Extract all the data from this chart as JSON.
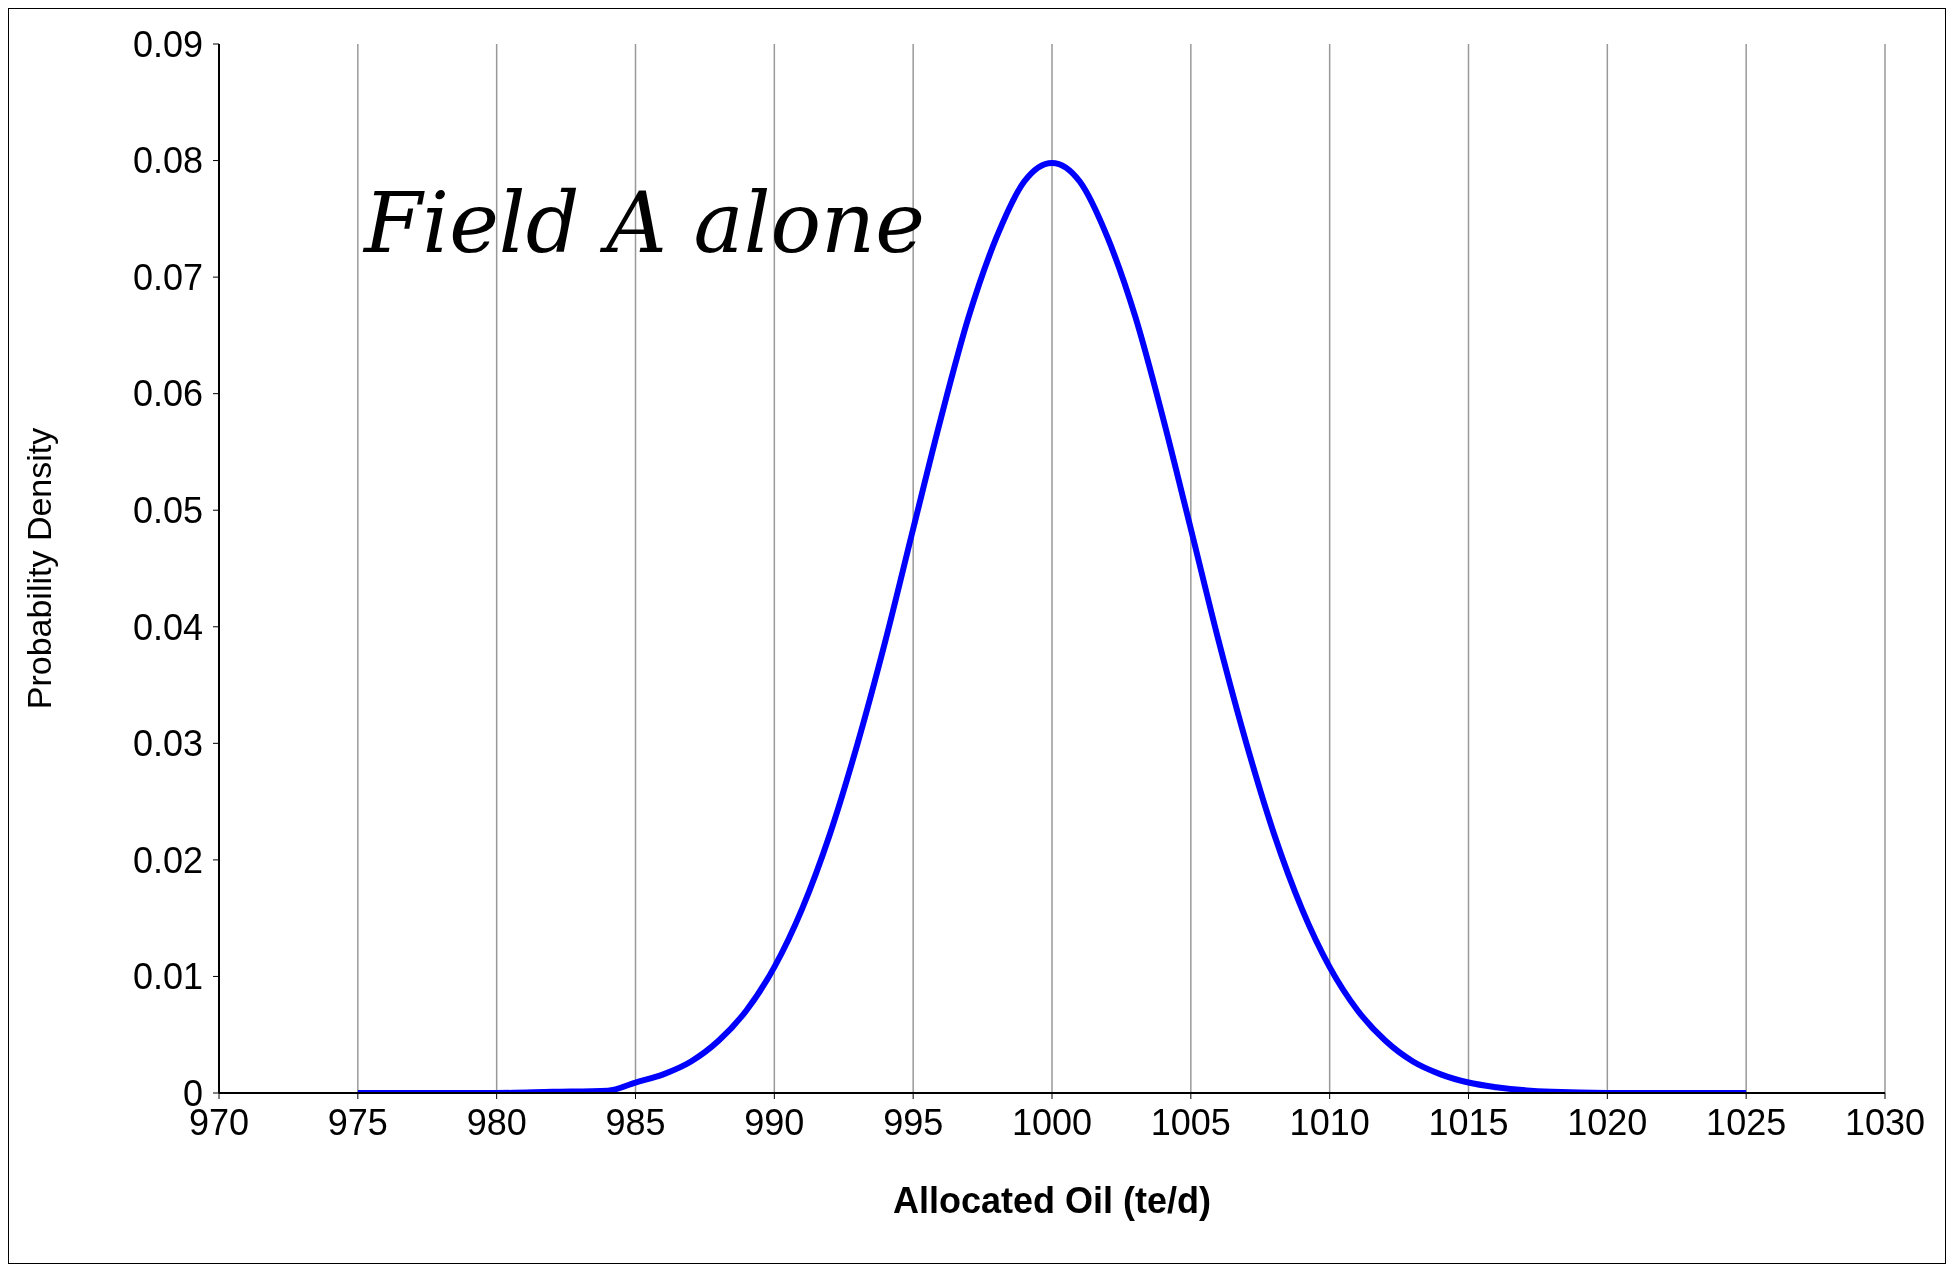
{
  "chart_data": {
    "type": "line",
    "xlabel": "Allocated Oil (te/d)",
    "ylabel": "Probability Density",
    "annotations": [
      "Field A alone"
    ],
    "x": [
      975,
      980,
      982,
      984,
      985,
      986,
      987,
      988,
      989,
      990,
      991,
      992,
      993,
      994,
      995,
      996,
      997,
      998,
      999,
      1000,
      1001,
      1002,
      1003,
      1004,
      1005,
      1006,
      1007,
      1008,
      1009,
      1010,
      1011,
      1012,
      1013,
      1014,
      1015,
      1016,
      1018,
      1020,
      1025
    ],
    "series": [
      {
        "color": "#0000ff",
        "values": [
          0,
          0,
          0.0001,
          0.0002,
          0.0009,
          0.0016,
          0.0027,
          0.0045,
          0.0071,
          0.0108,
          0.0158,
          0.0222,
          0.03,
          0.0388,
          0.0484,
          0.0579,
          0.0666,
          0.0734,
          0.0782,
          0.0798,
          0.0782,
          0.0734,
          0.0666,
          0.0579,
          0.0484,
          0.0388,
          0.03,
          0.0222,
          0.0158,
          0.0108,
          0.0071,
          0.0045,
          0.0027,
          0.0016,
          0.0009,
          0.0005,
          0.0001,
          0,
          0
        ]
      }
    ],
    "xlim": [
      970,
      1030
    ],
    "xticks": [
      970,
      975,
      980,
      985,
      990,
      995,
      1000,
      1005,
      1010,
      1015,
      1020,
      1025,
      1030
    ],
    "ylim": [
      0,
      0.09
    ],
    "yticks": [
      0,
      0.01,
      0.02,
      0.03,
      0.04,
      0.05,
      0.06,
      0.07,
      0.08,
      0.09
    ],
    "grid": "x",
    "marker": "none",
    "line_style": "solid"
  }
}
